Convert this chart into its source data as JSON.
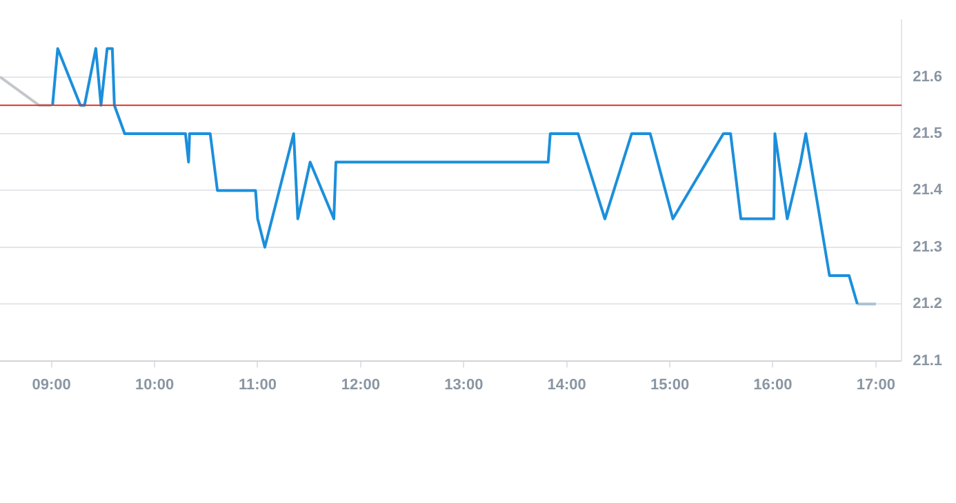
{
  "chart_data": {
    "type": "line",
    "xlim": [
      8.5,
      17.25
    ],
    "ylim": [
      21.1,
      21.7
    ],
    "xticks": [
      {
        "value": 9,
        "label": "09:00"
      },
      {
        "value": 10,
        "label": "10:00"
      },
      {
        "value": 11,
        "label": "11:00"
      },
      {
        "value": 12,
        "label": "12:00"
      },
      {
        "value": 13,
        "label": "13:00"
      },
      {
        "value": 14,
        "label": "14:00"
      },
      {
        "value": 15,
        "label": "15:00"
      },
      {
        "value": 16,
        "label": "16:00"
      },
      {
        "value": 17,
        "label": "17:00"
      }
    ],
    "yticks": [
      21.1,
      21.2,
      21.3,
      21.4,
      21.5,
      21.6
    ],
    "grid": "y",
    "legend": false,
    "marker": "none",
    "line_style": "solid",
    "ref_lines": [
      {
        "axis": "y",
        "value": 21.55,
        "color": "#d9342b"
      }
    ],
    "series": [
      {
        "color": "#c3c7cb",
        "x": [
          8.5,
          8.88,
          9.0
        ],
        "values": [
          21.6,
          21.55,
          21.55
        ]
      },
      {
        "color": "#1b8fdb",
        "x": [
          9.01,
          9.06,
          9.28,
          9.32,
          9.43,
          9.48,
          9.54,
          9.59,
          9.61,
          9.71,
          10.3,
          10.33,
          10.34,
          10.54,
          10.61,
          10.98,
          11.0,
          11.07,
          11.35,
          11.39,
          11.51,
          11.74,
          11.76,
          13.82,
          13.84,
          14.11,
          14.37,
          14.63,
          14.81,
          15.03,
          15.52,
          15.59,
          15.69,
          16.01,
          16.02,
          16.14,
          16.27,
          16.32,
          16.55,
          16.74,
          16.82
        ],
        "values": [
          21.55,
          21.65,
          21.55,
          21.55,
          21.65,
          21.55,
          21.65,
          21.65,
          21.55,
          21.5,
          21.5,
          21.45,
          21.5,
          21.5,
          21.4,
          21.4,
          21.35,
          21.3,
          21.5,
          21.35,
          21.45,
          21.35,
          21.45,
          21.45,
          21.5,
          21.5,
          21.35,
          21.5,
          21.5,
          21.35,
          21.5,
          21.5,
          21.35,
          21.35,
          21.5,
          21.35,
          21.45,
          21.5,
          21.25,
          21.25,
          21.2
        ]
      },
      {
        "color": "#a9c1d4",
        "x": [
          16.82,
          17.0
        ],
        "values": [
          21.2,
          21.2
        ]
      }
    ]
  }
}
